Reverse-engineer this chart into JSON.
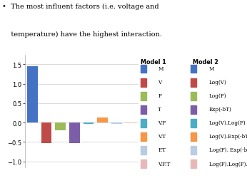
{
  "categories": [
    "M",
    "V",
    "F",
    "T",
    "V.F",
    "V.T",
    "F.T",
    "V.F.T"
  ],
  "values": [
    1.45,
    -0.53,
    -0.2,
    -0.52,
    -0.03,
    0.13,
    -0.03,
    -0.02
  ],
  "bar_colors": [
    "#4472C4",
    "#BE4B48",
    "#9BBB59",
    "#7B5EA7",
    "#4BACC6",
    "#F79646",
    "#B8CCE4",
    "#E6B9B8"
  ],
  "ylim": [
    -1.15,
    1.75
  ],
  "yticks": [
    -1,
    -0.5,
    0,
    0.5,
    1,
    1.5
  ],
  "legend_model1_labels": [
    "M",
    "V",
    "F",
    "T",
    "V.F",
    "V.T",
    "F.T",
    "V.F.T"
  ],
  "legend_model2_labels": [
    "M",
    "Log(V)",
    "Log(F)",
    "Exp(-bT)",
    "Log(V).Log(F)",
    "Log(V).Exp(-bT)",
    "Log(F). Exp(-bT)",
    "Log(F).Log(F). Exp(-bT)"
  ],
  "header1": "Model 1",
  "header2": "Model 2",
  "bullet_text_line1": "•  The most influent factors (i.e. voltage and",
  "bullet_text_line2": "    temperature) have the highest interaction."
}
